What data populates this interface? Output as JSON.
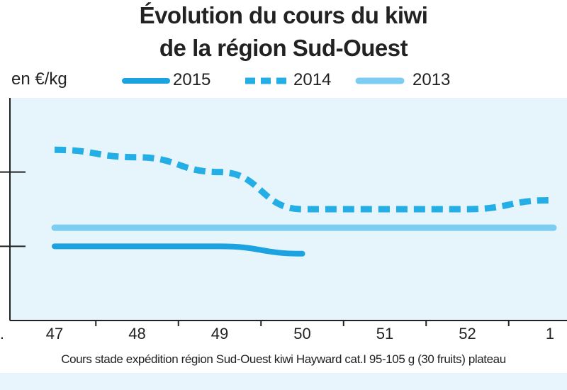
{
  "header": {
    "title_line1": "Évolution du cours du kiwi",
    "title_line2": "de la région Sud-Ouest",
    "unit": "en €/kg"
  },
  "footnote": "Cours stade expédition région Sud-Ouest kiwi Hayward cat.I 95-105 g (30 fruits) plateau",
  "axis_edge_label": "n.",
  "colors": {
    "s2015": "#1aa3e0",
    "s2014": "#24aee6",
    "s2013": "#7ccdf2",
    "plot_bg": "#e6f4fc",
    "axis": "#222222"
  },
  "chart_data": {
    "type": "line",
    "title": "Évolution du cours du kiwi de la région Sud-Ouest",
    "ylabel": "en €/kg",
    "xlabel": "",
    "categories": [
      "47",
      "48",
      "49",
      "50",
      "51",
      "52",
      "1"
    ],
    "ylim": [
      0,
      3
    ],
    "y_tick_values": [
      1,
      2
    ],
    "y_tick_labels_visible": false,
    "legend_position": "top",
    "grid": false,
    "series": [
      {
        "name": "2015",
        "style": "solid-thick",
        "values": [
          1.0,
          1.0,
          1.0,
          0.9,
          null,
          null,
          null
        ]
      },
      {
        "name": "2014",
        "style": "dashed",
        "values": [
          2.3,
          2.2,
          2.0,
          1.5,
          1.5,
          1.5,
          1.62
        ]
      },
      {
        "name": "2013",
        "style": "solid-light",
        "values": [
          1.25,
          1.25,
          1.25,
          1.25,
          1.25,
          1.25,
          1.25
        ]
      }
    ]
  }
}
